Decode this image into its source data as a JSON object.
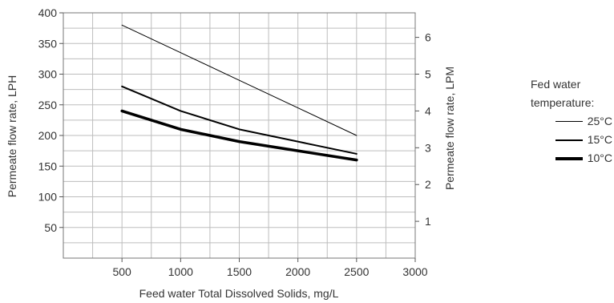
{
  "chart_data": {
    "type": "line",
    "x": [
      500,
      1000,
      1500,
      2000,
      2500
    ],
    "xlabel": "Feed water Total Dissolved Solids, mg/L",
    "ylabel": "Permeate flow rate, LPH",
    "y2label": "Permeate flow rate, LPM",
    "xlim": [
      0,
      3000
    ],
    "ylim": [
      0,
      400
    ],
    "y2lim": [
      0,
      6.667
    ],
    "xticks": [
      "500",
      "1000",
      "1500",
      "2000",
      "2500",
      "3000"
    ],
    "yticks": [
      "50",
      "100",
      "150",
      "200",
      "250",
      "300",
      "350",
      "400"
    ],
    "y2ticks": [
      "1",
      "2",
      "3",
      "4",
      "5",
      "6"
    ],
    "grid": true,
    "legend_title": "Fed water temperature:",
    "legend_position": "right",
    "series": [
      {
        "name": "25°C",
        "values": [
          380,
          335,
          290,
          245,
          200
        ],
        "line_width": 1
      },
      {
        "name": "15°C",
        "values": [
          280,
          240,
          210,
          190,
          170
        ],
        "line_width": 2
      },
      {
        "name": "10°C",
        "values": [
          240,
          210,
          190,
          175,
          160
        ],
        "line_width": 3.5
      }
    ]
  }
}
